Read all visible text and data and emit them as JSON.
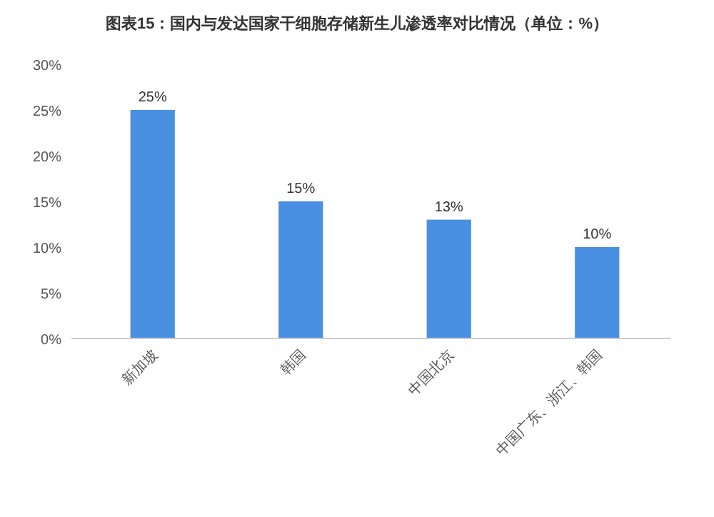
{
  "chart_data": {
    "type": "bar",
    "title": "图表15：国内与发达国家干细胞存储新生儿渗透率对比情况（单位：%）",
    "categories": [
      "新加坡",
      "韩国",
      "中国北京",
      "中国广东、浙江、韩国"
    ],
    "values": [
      25,
      15,
      13,
      10
    ],
    "value_labels": [
      "25%",
      "15%",
      "13%",
      "10%"
    ],
    "color": "#4a90e2",
    "ylim": [
      0,
      30
    ],
    "yticks": [
      {
        "value": 0,
        "label": "0%"
      },
      {
        "value": 5,
        "label": "5%"
      },
      {
        "value": 10,
        "label": "10%"
      },
      {
        "value": 15,
        "label": "15%"
      },
      {
        "value": 20,
        "label": "20%"
      },
      {
        "value": 25,
        "label": "25%"
      },
      {
        "value": 30,
        "label": "30%"
      }
    ]
  }
}
